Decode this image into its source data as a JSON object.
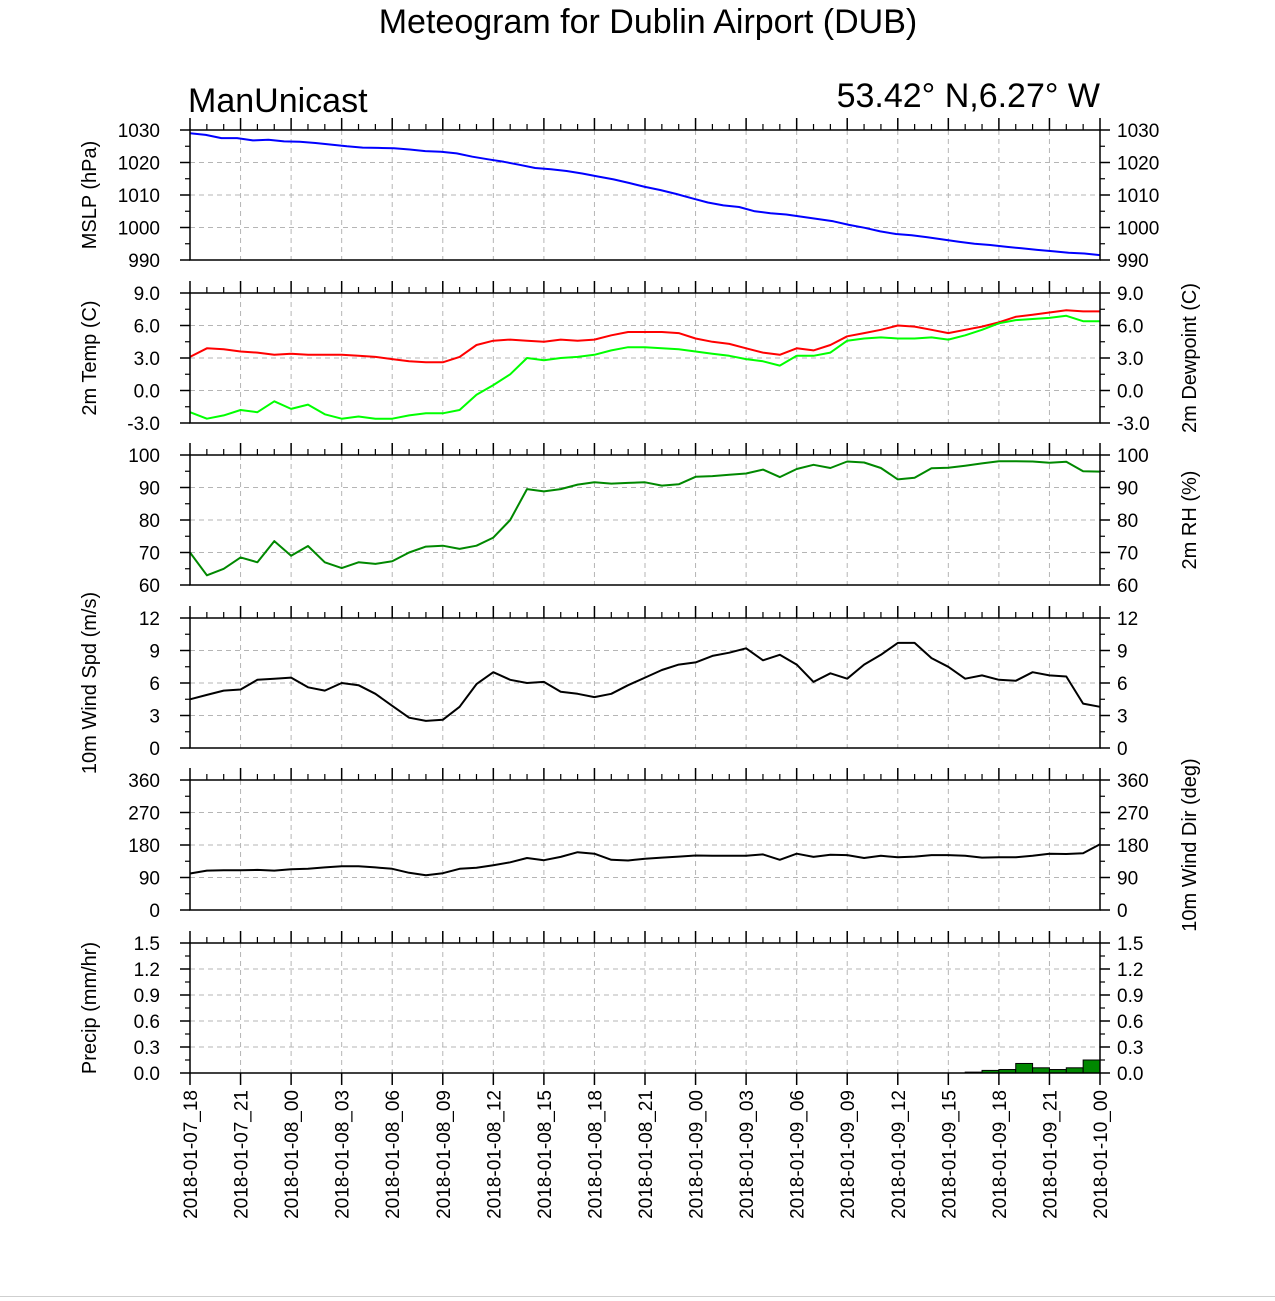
{
  "header": {
    "title": "Meteogram for Dublin Airport (DUB)",
    "left_label": "ManUnicast",
    "right_label": "53.42° N,6.27° W"
  },
  "chart_data": [
    {
      "id": "mslp",
      "type": "line",
      "ylabel": "MSLP (hPa)",
      "ylabel_right": "",
      "ylim": [
        990,
        1030
      ],
      "yticks": [
        "990",
        "1000",
        "1010",
        "1020",
        "1030"
      ],
      "grid": true,
      "series": [
        {
          "color": "#0000ff",
          "values": [
            1029,
            1028.5,
            1027.5,
            1027.5,
            1026.8,
            1027,
            1026.5,
            1026.4,
            1026,
            1025.5,
            1025,
            1024.6,
            1024.5,
            1024.4,
            1024,
            1023.5,
            1023.3,
            1022.8,
            1021.8,
            1021,
            1020.2,
            1019.3,
            1018.3,
            1017.9,
            1017.4,
            1016.6,
            1015.7,
            1014.8,
            1013.7,
            1012.5,
            1011.5,
            1010.3,
            1009,
            1007.7,
            1006.8,
            1006.3,
            1005,
            1004.4,
            1004,
            1003.3,
            1002.6,
            1001.9,
            1000.8,
            999.9,
            998.8,
            998,
            997.6,
            997,
            996.3,
            995.6,
            995,
            994.6,
            994.1,
            993.6,
            993.1,
            992.7,
            992.2,
            992,
            991.5
          ]
        }
      ]
    },
    {
      "id": "temp",
      "type": "line",
      "ylabel": "2m Temp (C)",
      "ylabel_right": "2m Dewpoint (C)",
      "ylim": [
        -3,
        9
      ],
      "yticks": [
        "-3.0",
        "0.0",
        "3.0",
        "6.0",
        "9.0"
      ],
      "grid": true,
      "series": [
        {
          "color": "#ff0000",
          "values": [
            3.1,
            3.9,
            3.8,
            3.6,
            3.5,
            3.3,
            3.4,
            3.3,
            3.3,
            3.3,
            3.2,
            3.1,
            2.9,
            2.7,
            2.6,
            2.6,
            3.1,
            4.2,
            4.6,
            4.7,
            4.6,
            4.5,
            4.7,
            4.6,
            4.7,
            5.1,
            5.4,
            5.4,
            5.4,
            5.3,
            4.8,
            4.5,
            4.3,
            3.9,
            3.5,
            3.3,
            3.9,
            3.7,
            4.2,
            5,
            5.3,
            5.6,
            6,
            5.9,
            5.6,
            5.3,
            5.6,
            5.9,
            6.3,
            6.8,
            7,
            7.2,
            7.4,
            7.3,
            7.3
          ]
        },
        {
          "color": "#00ff00",
          "values": [
            -2,
            -2.6,
            -2.3,
            -1.8,
            -2,
            -1,
            -1.7,
            -1.3,
            -2.2,
            -2.6,
            -2.4,
            -2.6,
            -2.6,
            -2.3,
            -2.1,
            -2.1,
            -1.8,
            -0.4,
            0.5,
            1.5,
            3,
            2.8,
            3,
            3.1,
            3.3,
            3.7,
            4,
            4,
            3.9,
            3.8,
            3.6,
            3.4,
            3.2,
            2.9,
            2.7,
            2.3,
            3.2,
            3.2,
            3.5,
            4.6,
            4.8,
            4.9,
            4.8,
            4.8,
            4.9,
            4.7,
            5.1,
            5.6,
            6.2,
            6.5,
            6.6,
            6.7,
            6.9,
            6.4,
            6.4
          ]
        }
      ]
    },
    {
      "id": "rh",
      "type": "line",
      "ylabel": "",
      "ylabel_right": "2m RH (%)",
      "ylim": [
        60,
        100
      ],
      "yticks": [
        "60",
        "70",
        "80",
        "90",
        "100"
      ],
      "grid": true,
      "series": [
        {
          "color": "#008800",
          "values": [
            70,
            63,
            65,
            68.5,
            67,
            73.5,
            69,
            72,
            67,
            65.2,
            67,
            66.5,
            67.3,
            70,
            71.8,
            72.1,
            71.1,
            72.1,
            74.6,
            80,
            89.5,
            88.8,
            89.5,
            90.9,
            91.6,
            91.2,
            91.4,
            91.6,
            90.6,
            91,
            93.3,
            93.5,
            93.9,
            94.3,
            95.5,
            93.2,
            95.7,
            97,
            96,
            98,
            97.7,
            96,
            92.5,
            93,
            95.9,
            96.1,
            96.7,
            97.4,
            98.1,
            98.1,
            98,
            97.6,
            97.9,
            95,
            94.9
          ]
        }
      ]
    },
    {
      "id": "wspd",
      "type": "line",
      "ylabel": "10m Wind Spd (m/s)",
      "ylabel_right": "",
      "ylim": [
        0,
        12
      ],
      "yticks": [
        "0",
        "3",
        "6",
        "9",
        "12"
      ],
      "grid": true,
      "series": [
        {
          "color": "#000000",
          "values": [
            4.5,
            4.9,
            5.3,
            5.4,
            6.3,
            6.4,
            6.5,
            5.6,
            5.3,
            6,
            5.8,
            5,
            3.9,
            2.8,
            2.5,
            2.6,
            3.8,
            5.9,
            7,
            6.3,
            6,
            6.1,
            5.2,
            5,
            4.7,
            5,
            5.8,
            6.5,
            7.2,
            7.7,
            7.9,
            8.5,
            8.8,
            9.2,
            8.1,
            8.6,
            7.7,
            6.1,
            6.9,
            6.4,
            7.7,
            8.6,
            9.7,
            9.7,
            8.3,
            7.5,
            6.4,
            6.7,
            6.3,
            6.2,
            7,
            6.7,
            6.6,
            4.1,
            3.8
          ]
        }
      ]
    },
    {
      "id": "wdir",
      "type": "line",
      "ylabel": "",
      "ylabel_right": "10m Wind Dir (deg)",
      "ylim": [
        0,
        360
      ],
      "yticks": [
        "0",
        "90",
        "180",
        "270",
        "360"
      ],
      "grid": true,
      "series": [
        {
          "color": "#000000",
          "values": [
            101,
            109,
            110,
            110,
            111,
            109,
            113,
            114,
            118,
            121,
            121,
            118,
            114,
            103,
            96,
            102,
            114,
            117,
            124,
            132,
            144,
            138,
            147,
            160,
            156,
            139,
            137,
            142,
            145,
            148,
            151,
            150,
            150,
            150,
            154,
            139,
            156,
            147,
            153,
            152,
            144,
            150,
            146,
            148,
            152,
            152,
            150,
            145,
            146,
            146,
            150,
            156,
            155,
            157,
            182
          ]
        }
      ]
    },
    {
      "id": "precip",
      "type": "bar",
      "ylabel": "Precip (mm/hr)",
      "ylabel_right": "",
      "ylim": [
        0,
        1.5
      ],
      "yticks": [
        "0.0",
        "0.3",
        "0.6",
        "0.9",
        "1.2",
        "1.5"
      ],
      "grid": true,
      "bar_color": "#008800",
      "values": [
        0,
        0,
        0,
        0,
        0,
        0,
        0,
        0,
        0,
        0,
        0,
        0,
        0,
        0,
        0,
        0,
        0,
        0,
        0,
        0,
        0,
        0,
        0,
        0,
        0,
        0,
        0,
        0,
        0,
        0,
        0,
        0,
        0,
        0,
        0,
        0,
        0,
        0,
        0,
        0,
        0,
        0,
        0,
        0,
        0,
        0,
        0.01,
        0.03,
        0.04,
        0.11,
        0.06,
        0.04,
        0.06,
        0.15
      ]
    }
  ],
  "x_axis": {
    "tick_labels": [
      "2018-01-07_18",
      "2018-01-07_21",
      "2018-01-08_00",
      "2018-01-08_03",
      "2018-01-08_06",
      "2018-01-08_09",
      "2018-01-08_12",
      "2018-01-08_15",
      "2018-01-08_18",
      "2018-01-08_21",
      "2018-01-09_00",
      "2018-01-09_03",
      "2018-01-09_06",
      "2018-01-09_09",
      "2018-01-09_12",
      "2018-01-09_15",
      "2018-01-09_18",
      "2018-01-09_21",
      "2018-01-10_00"
    ]
  }
}
